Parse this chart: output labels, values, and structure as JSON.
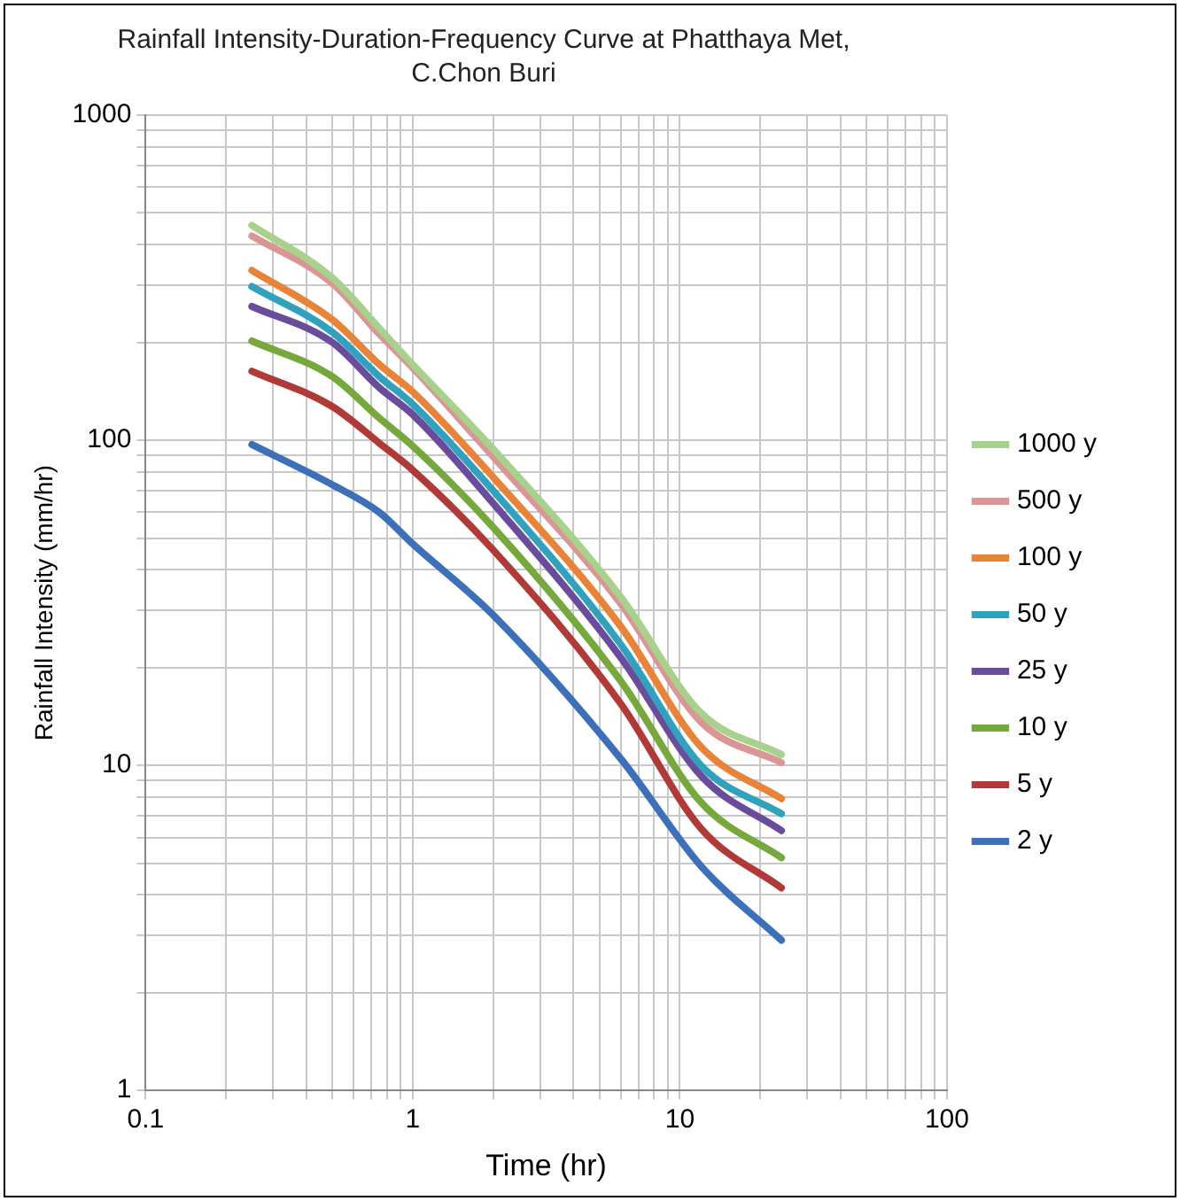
{
  "chart_data": {
    "type": "line",
    "title": "Rainfall Intensity-Duration-Frequency Curve at Phatthaya Met, C.Chon Buri",
    "xlabel": "Time (hr)",
    "ylabel": "Rainfall Intensity (mm/hr)",
    "log": "xy",
    "grid": true,
    "legend": "right",
    "marker": "none",
    "line_style": "solid",
    "xlim": [
      0.1,
      100
    ],
    "ylim": [
      1,
      1000
    ],
    "xticks": [
      0.1,
      {
        "value": 0.2,
        "label": null
      },
      {
        "value": 0.3,
        "label": null
      },
      {
        "value": 0.4,
        "label": null
      },
      {
        "value": 0.5,
        "label": null
      },
      {
        "value": 0.6,
        "label": null
      },
      {
        "value": 0.7,
        "label": null
      },
      {
        "value": 0.8,
        "label": null
      },
      {
        "value": 0.9,
        "label": null
      },
      1,
      {
        "value": 2,
        "label": null
      },
      {
        "value": 3,
        "label": null
      },
      {
        "value": 4,
        "label": null
      },
      {
        "value": 5,
        "label": null
      },
      {
        "value": 6,
        "label": null
      },
      {
        "value": 7,
        "label": null
      },
      {
        "value": 8,
        "label": null
      },
      {
        "value": 9,
        "label": null
      },
      10,
      {
        "value": 20,
        "label": null
      },
      {
        "value": 30,
        "label": null
      },
      {
        "value": 40,
        "label": null
      },
      {
        "value": 50,
        "label": null
      },
      {
        "value": 60,
        "label": null
      },
      {
        "value": 70,
        "label": null
      },
      {
        "value": 80,
        "label": null
      },
      {
        "value": 90,
        "label": null
      },
      100
    ],
    "yticks": [
      1,
      {
        "value": 2,
        "label": null
      },
      {
        "value": 3,
        "label": null
      },
      {
        "value": 4,
        "label": null
      },
      {
        "value": 5,
        "label": null
      },
      {
        "value": 6,
        "label": null
      },
      {
        "value": 7,
        "label": null
      },
      {
        "value": 8,
        "label": null
      },
      {
        "value": 9,
        "label": null
      },
      10,
      {
        "value": 20,
        "label": null
      },
      {
        "value": 30,
        "label": null
      },
      {
        "value": 40,
        "label": null
      },
      {
        "value": 50,
        "label": null
      },
      {
        "value": 60,
        "label": null
      },
      {
        "value": 70,
        "label": null
      },
      {
        "value": 80,
        "label": null
      },
      {
        "value": 90,
        "label": null
      },
      100,
      {
        "value": 200,
        "label": null
      },
      {
        "value": 300,
        "label": null
      },
      {
        "value": 400,
        "label": null
      },
      {
        "value": 500,
        "label": null
      },
      {
        "value": 600,
        "label": null
      },
      {
        "value": 700,
        "label": null
      },
      {
        "value": 800,
        "label": null
      },
      {
        "value": 900,
        "label": null
      },
      1000
    ],
    "x": [
      0.25,
      0.5,
      0.75,
      1,
      2,
      6,
      12,
      24
    ],
    "series": [
      {
        "name": "1000 y",
        "color": "#a9d18e",
        "values": [
          458,
          316,
          221,
          171,
          94,
          33,
          14.5,
          10.8
        ]
      },
      {
        "name": "500 y",
        "color": "#d99694",
        "values": [
          425,
          304,
          212,
          167,
          89,
          31.5,
          13.6,
          10.2
        ]
      },
      {
        "name": "100 y",
        "color": "#e8833a",
        "values": [
          333,
          235,
          171,
          141,
          77,
          26.8,
          11.4,
          7.9
        ]
      },
      {
        "name": "50 y",
        "color": "#31a1bd",
        "values": [
          297,
          215,
          157,
          129,
          70,
          23.6,
          10,
          7.1
        ]
      },
      {
        "name": "25 y",
        "color": "#6a4c9c",
        "values": [
          258,
          200,
          145,
          120,
          64,
          21.5,
          9.3,
          6.3
        ]
      },
      {
        "name": "10 y",
        "color": "#77a83d",
        "values": [
          202,
          157,
          117,
          96,
          54,
          18.2,
          7.7,
          5.2
        ]
      },
      {
        "name": "5 y",
        "color": "#b03a38",
        "values": [
          163,
          127,
          98,
          81,
          46,
          15.5,
          6.4,
          4.2
        ]
      },
      {
        "name": "2 y",
        "color": "#3d70b8",
        "values": [
          97,
          73,
          60,
          48,
          29,
          10.5,
          4.9,
          2.9
        ]
      }
    ]
  }
}
